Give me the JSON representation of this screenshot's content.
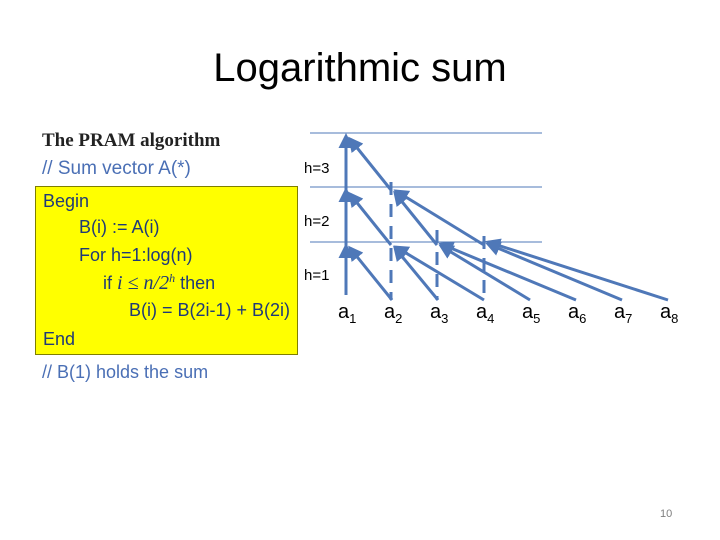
{
  "slide": {
    "title": "Logarithmic sum",
    "page_number": "10"
  },
  "algorithm": {
    "heading": "The PRAM algorithm",
    "comment_top": "// Sum vector A(*)",
    "begin": "Begin",
    "line_assign": "B(i) := A(i)",
    "line_for": "For h=1:log(n)",
    "line_if_prefix": "if",
    "line_if_math": "i ≤ n/2",
    "line_if_exp": "h",
    "line_if_suffix": "then",
    "line_sum": "B(i) = B(2i-1) + B(2i)",
    "end": "End",
    "comment_bottom": "// B(1) holds the sum"
  },
  "tree": {
    "levels": [
      "h=3",
      "h=2",
      "h=1"
    ],
    "leaf_letter": "a",
    "leaf_indices": [
      "1",
      "2",
      "3",
      "4",
      "5",
      "6",
      "7",
      "8"
    ],
    "arrow_color": "#4f78b8",
    "level_line_color": "#4f78b8",
    "dashed_color": "#4f78b8"
  }
}
